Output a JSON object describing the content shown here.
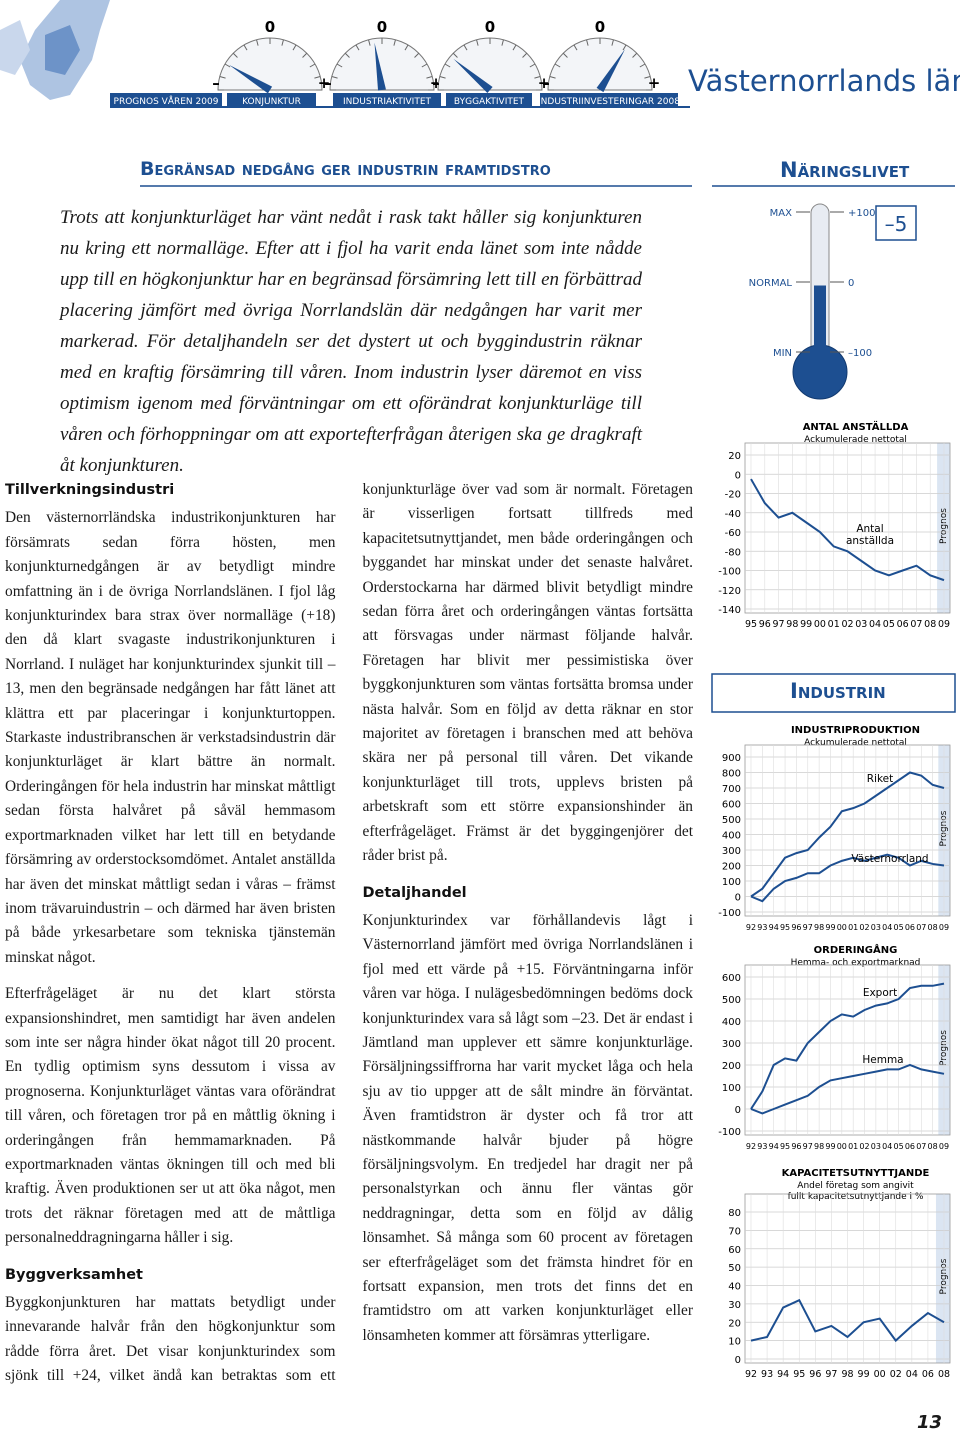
{
  "header": {
    "prognos": "PROGNOS VÅREN 2009",
    "region": "Västernorrlands län",
    "gauge_scale": {
      "zero": "0",
      "minus": "–",
      "plus": "+"
    },
    "gauges": [
      {
        "label": "KONJUNKTUR",
        "value": -65
      },
      {
        "label": "INDUSTRIAKTIVITET",
        "value": -10
      },
      {
        "label": "BYGGAKTIVITET",
        "value": -55
      },
      {
        "label": "INDUSTRIINVESTERINGAR 2008",
        "value": 35
      }
    ]
  },
  "headline": "Begränsad nedgång ger industrin framtidstro",
  "lead": "Trots att konjunkturläget har vänt nedåt i rask takt håller sig konjunkturen nu kring ett normalläge. Efter att i fjol ha varit enda länet som inte nådde upp till en högkonjunktur har en begränsad försämring lett till en förbättrad placering jämfört med övriga Norrlandslän där nedgången har varit mer markerad. För detaljhandeln ser det dystert ut och byggindustrin räknar med en kraftig försämring till våren. Inom industrin lyser däremot en viss optimism igenom med förväntningar om ett oförändrat konjunkturläge till våren och förhoppningar om att exportefterfrågan återigen ska ge dragkraft åt konjunkturen.",
  "sections": [
    {
      "heading": "Tillverkningsindustri",
      "paragraphs": [
        "Den västernorrländska industrikonjunkturen har försämrats sedan förra hösten, men konjunkturnedgången är av betydligt mindre omfattning än i de övriga Norrlandslänen. I fjol låg konjunkturindex bara strax över normalläge (+18) den då klart svagaste industrikonjunkturen i Norrland. I nuläget har konjunkturindex sjunkit till –13, men den begränsade nedgången har fått länet att klättra ett par placeringar i konjunkturtoppen. Starkaste industribranschen är verkstadsindustrin där konjunkturläget är klart bättre än normalt. Orderingången för hela industrin har minskat måttligt sedan första halvåret på såväl hemmasom exportmarknaden vilket har lett till en betydande försämring av orderstocksomdömet. Antalet anställda har även det minskat måttligt sedan i våras – främst inom trävaruindustrin – och därmed har även bristen på både yrkesarbetare som tekniska tjänstemän minskat något.",
        "Efterfrågeläget är nu det klart största expansionshindret, men samtidigt har även andelen som inte ser några hinder ökat något till 20 procent. En tydlig optimism syns dessutom i vissa av prognoserna. Konjunkturläget väntas vara oförändrat till våren, och företagen tror på en måttlig ökning i orderingången från hemmamarknaden. På exportmarknaden väntas ökningen till och med bli kraftig. Även produktionen ser ut att öka något, men trots det räknar företagen med att de måttliga personalneddragningarna håller i sig."
      ]
    },
    {
      "heading": "Byggverksamhet",
      "paragraphs": [
        "Byggkonjunkturen har mattats betydligt under innevarande halvår från den högkonjunktur som rådde förra året. Det visar konjunkturindex som sjönk till +24, vilket ändå kan betraktas som ett konjunkturläge över vad som är normalt. Företagen är visserligen fortsatt tillfreds med kapacitetsutnyttjandet, men både orderingången och byggandet har minskat under det senaste halvåret. Orderstockarna har därmed blivit betydligt mindre sedan förra året och orderingången väntas fortsätta att försvagas under närmast följande halvår. Företagen har blivit mer pessimistiska över byggkonjunkturen som väntas fortsätta bromsa under nästa halvår. Som en följd av detta räknar en stor majoritet av företagen i branschen med att behöva skära ner på personal till våren. Det vikande konjunkturläget till trots, upplevs bristen på arbetskraft som ett större expansionshinder än efterfrågeläget. Främst är det byggingenjörer det råder brist på."
      ]
    },
    {
      "heading": "Detaljhandel",
      "paragraphs": [
        "Konjunkturindex var förhållandevis lågt i Västernorrland jämfört med övriga Norrlandslänen i fjol med ett värde på +15. Förväntningarna inför våren var höga. I nulägesbedömningen bedöms dock konjunkturindex vara så lågt som –23. Det är endast i Jämtland man upplever ett sämre konjunkturläge. Försäljningssiffrorna har varit mycket låga och hela sju av tio uppger att de sålt mindre än förväntat. Även framtidstron är dyster och få tror att nästkommande halvår bjuder på högre försäljningsvolym. En tredjedel har dragit ner på personalstyrkan och ännu fler väntas gör neddragningar, detta som en följd av dålig lönsamhet. Så många som 60 procent av företagen ser efterfrågeläget som det främsta hindret för en fortsatt expansion, men trots det finns det en framtidstro om att varken konjunkturläget eller lönsamheten kommer att försämras ytterligare."
      ]
    }
  ],
  "sidebar": {
    "naringslivet": "Näringslivet",
    "industrin": "Industrin",
    "thermometer": {
      "max": "MAX",
      "normal": "NORMAL",
      "min": "MIN",
      "ticks": [
        {
          "value": 100,
          "label": "+100"
        },
        0,
        {
          "value": -100,
          "label": "–100"
        }
      ],
      "value": -5,
      "value_label": "–5"
    },
    "prognos": "Prognos",
    "charts": [
      {
        "type": "line",
        "title": "ANTAL ANSTÄLLDA",
        "subtitle": "Ackumulerade nettotal",
        "categories": [
          "95",
          "96",
          "97",
          "98",
          "99",
          "00",
          "01",
          "02",
          "03",
          "04",
          "05",
          "06",
          "07",
          "08",
          "09"
        ],
        "series": [
          {
            "name": "Antal anställda",
            "color": "#1d4f91",
            "values": [
              -5,
              -30,
              -45,
              -40,
              -50,
              -60,
              -75,
              -80,
              -90,
              -100,
              -105,
              -100,
              -95,
              -105,
              -110
            ]
          }
        ],
        "ylim": [
          -140,
          20
        ],
        "yticks": [
          20,
          0,
          -20,
          -40,
          -60,
          -80,
          -100,
          -120,
          -140
        ],
        "grid": true
      },
      {
        "type": "line",
        "title": "INDUSTRIPRODUKTION",
        "subtitle": "Ackumulerade nettotal",
        "categories": [
          "92",
          "93",
          "94",
          "95",
          "96",
          "97",
          "98",
          "99",
          "00",
          "01",
          "02",
          "03",
          "04",
          "05",
          "06",
          "07",
          "08",
          "09"
        ],
        "series": [
          {
            "name": "Riket",
            "color": "#1d4f91",
            "values": [
              0,
              50,
              150,
              250,
              280,
              300,
              380,
              450,
              550,
              570,
              600,
              650,
              700,
              750,
              800,
              780,
              720,
              700
            ]
          },
          {
            "name": "Västernorrland",
            "color": "#1d4f91",
            "values": [
              0,
              -30,
              50,
              100,
              120,
              150,
              150,
              200,
              230,
              250,
              230,
              250,
              270,
              250,
              200,
              230,
              210,
              200
            ]
          }
        ],
        "ylim": [
          -100,
          900
        ],
        "yticks": [
          900,
          800,
          700,
          600,
          500,
          400,
          300,
          200,
          100,
          0,
          -100
        ],
        "grid": true
      },
      {
        "type": "line",
        "title": "ORDERINGÅNG",
        "subtitle": "Hemma- och exportmarknad",
        "categories": [
          "92",
          "93",
          "94",
          "95",
          "96",
          "97",
          "98",
          "99",
          "00",
          "01",
          "02",
          "03",
          "04",
          "05",
          "06",
          "07",
          "08",
          "09"
        ],
        "series": [
          {
            "name": "Export",
            "color": "#1d4f91",
            "values": [
              0,
              80,
              200,
              230,
              220,
              300,
              350,
              400,
              430,
              420,
              450,
              470,
              480,
              500,
              550,
              560,
              560,
              570
            ]
          },
          {
            "name": "Hemma",
            "color": "#1d4f91",
            "values": [
              0,
              -20,
              0,
              20,
              40,
              60,
              100,
              130,
              140,
              150,
              160,
              170,
              180,
              180,
              200,
              180,
              170,
              160
            ]
          }
        ],
        "ylim": [
          -100,
          600
        ],
        "yticks": [
          600,
          500,
          400,
          300,
          200,
          100,
          0,
          -100
        ],
        "grid": true
      },
      {
        "type": "line",
        "title": "KAPACITETSUTNYTTJANDE",
        "subtitle": "Andel företag som angivit fullt kapacitetsutnyttjande i %",
        "categories": [
          "92",
          "93",
          "94",
          "95",
          "96",
          "97",
          "98",
          "99",
          "00",
          "02",
          "04",
          "06",
          "08"
        ],
        "series": [
          {
            "color": "#1d4f91",
            "values": [
              10,
              12,
              28,
              32,
              15,
              18,
              12,
              20,
              22,
              10,
              18,
              25,
              20
            ]
          }
        ],
        "ylim": [
          0,
          80
        ],
        "yticks": [
          80,
          70,
          60,
          50,
          40,
          30,
          20,
          10,
          0
        ],
        "grid": true
      }
    ]
  },
  "page_number": "13"
}
